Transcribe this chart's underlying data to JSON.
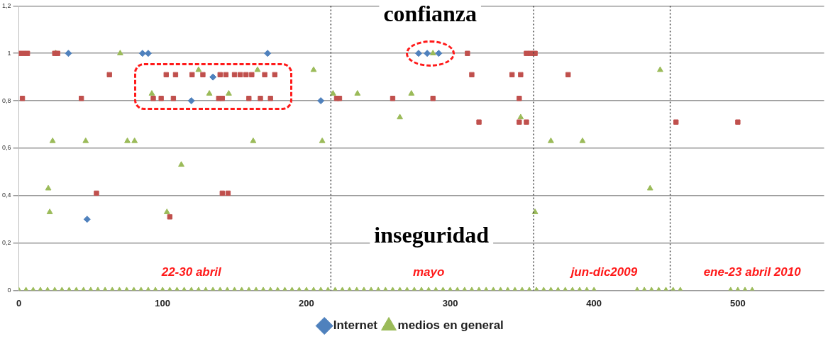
{
  "chart_data": {
    "type": "scatter",
    "xlim": [
      0,
      560
    ],
    "xticks": [
      0,
      100,
      200,
      300,
      400,
      500
    ],
    "ylim": [
      0,
      1.2
    ],
    "yticks": [
      0,
      {
        "value": 0.2,
        "label": "0,2"
      },
      {
        "value": 0.4,
        "label": "0,4"
      },
      {
        "value": 0.6,
        "label": "0,6"
      },
      {
        "value": 0.8,
        "label": "0,8"
      },
      1,
      {
        "value": 1.2,
        "label": "1,2"
      }
    ],
    "grid": "y",
    "legend": "bottom",
    "series": [
      {
        "name": "Internet",
        "color": "#4f81bd",
        "marker": "diamond",
        "x": [
          34.5,
          86,
          90,
          173,
          135,
          120,
          210,
          47.5,
          278,
          284,
          292
        ],
        "values": [
          1,
          1,
          1,
          1,
          0.9,
          0.8,
          0.8,
          0.3,
          1,
          1,
          1
        ]
      },
      {
        "color": "#c0504d",
        "marker": "square",
        "x": [
          0,
          3,
          6,
          25,
          27,
          63,
          102.5,
          109,
          120.5,
          128,
          140,
          144,
          150,
          154,
          158,
          162,
          171,
          178,
          2.5,
          43.5,
          93.5,
          99,
          107.5,
          139,
          141.5,
          160,
          168,
          175,
          221,
          54,
          141.5,
          145.5,
          105,
          312,
          353,
          356,
          359,
          315,
          343,
          349,
          382,
          223,
          260,
          288,
          348,
          320,
          348,
          353,
          457,
          500
        ],
        "values": [
          1,
          1,
          1,
          1,
          1,
          0.91,
          0.91,
          0.91,
          0.91,
          0.91,
          0.91,
          0.91,
          0.91,
          0.91,
          0.91,
          0.91,
          0.91,
          0.91,
          0.81,
          0.81,
          0.81,
          0.81,
          0.81,
          0.81,
          0.81,
          0.81,
          0.81,
          0.81,
          0.81,
          0.41,
          0.41,
          0.41,
          0.31,
          1,
          1,
          1,
          1,
          0.91,
          0.91,
          0.91,
          0.91,
          0.81,
          0.81,
          0.81,
          0.81,
          0.71,
          0.71,
          0.71,
          0.71,
          0.71
        ]
      },
      {
        "name": "medios en general",
        "color": "#9bbb59",
        "marker": "triangle",
        "x": [
          25.5,
          70.5,
          125,
          166,
          205,
          92.5,
          132.5,
          146,
          218.5,
          23.5,
          46.5,
          75.5,
          80.5,
          163,
          211,
          113,
          20.5,
          21.5,
          103,
          235.5,
          273,
          288,
          265,
          349,
          370,
          392,
          446,
          359,
          439,
          0,
          5,
          10,
          15,
          20,
          25,
          30,
          35,
          40,
          45,
          50,
          55,
          60,
          65,
          70,
          75,
          80,
          85,
          90,
          95,
          100,
          105,
          110,
          115,
          120,
          125,
          130,
          135,
          140,
          145,
          150,
          155,
          160,
          165,
          170,
          175,
          180,
          185,
          190,
          195,
          200,
          205,
          210,
          215,
          220,
          225,
          230,
          235,
          240,
          245,
          250,
          255,
          260,
          265,
          270,
          275,
          280,
          285,
          290,
          295,
          300,
          305,
          310,
          315,
          320,
          325,
          330,
          335,
          340,
          345,
          350,
          355,
          360,
          365,
          370,
          375,
          380,
          385,
          390,
          395,
          400,
          430,
          435,
          440,
          445,
          450,
          455,
          460,
          495,
          500,
          505,
          510
        ],
        "values": [
          1,
          1,
          0.93,
          0.93,
          0.93,
          0.83,
          0.83,
          0.83,
          0.83,
          0.63,
          0.63,
          0.63,
          0.63,
          0.63,
          0.63,
          0.53,
          0.43,
          0.33,
          0.33,
          0.83,
          0.83,
          1,
          0.73,
          0.73,
          0.63,
          0.63,
          0.93,
          0.33,
          0.43,
          0,
          0,
          0,
          0,
          0,
          0,
          0,
          0,
          0,
          0,
          0,
          0,
          0,
          0,
          0,
          0,
          0,
          0,
          0,
          0,
          0,
          0,
          0,
          0,
          0,
          0,
          0,
          0,
          0,
          0,
          0,
          0,
          0,
          0,
          0,
          0,
          0,
          0,
          0,
          0,
          0,
          0,
          0,
          0,
          0,
          0,
          0,
          0,
          0,
          0,
          0,
          0,
          0,
          0,
          0,
          0,
          0,
          0,
          0,
          0,
          0,
          0,
          0,
          0,
          0,
          0,
          0,
          0,
          0,
          0,
          0,
          0,
          0,
          0,
          0,
          0,
          0,
          0,
          0,
          0,
          0,
          0,
          0,
          0,
          0,
          0,
          0,
          0,
          0,
          0,
          0,
          0
        ]
      }
    ],
    "ref_lines": [
      {
        "axis": "x",
        "value": 217,
        "color": "#444444",
        "line_style": "dotted"
      },
      {
        "axis": "x",
        "value": 358,
        "color": "#444444",
        "line_style": "dotted"
      },
      {
        "axis": "x",
        "value": 453,
        "color": "#444444",
        "line_style": "dotted"
      }
    ],
    "annotations": [
      "confianza",
      "inseguridad",
      "22-30 abril",
      "mayo",
      "jun-dic2009",
      "ene-23 abril 2010"
    ]
  }
}
